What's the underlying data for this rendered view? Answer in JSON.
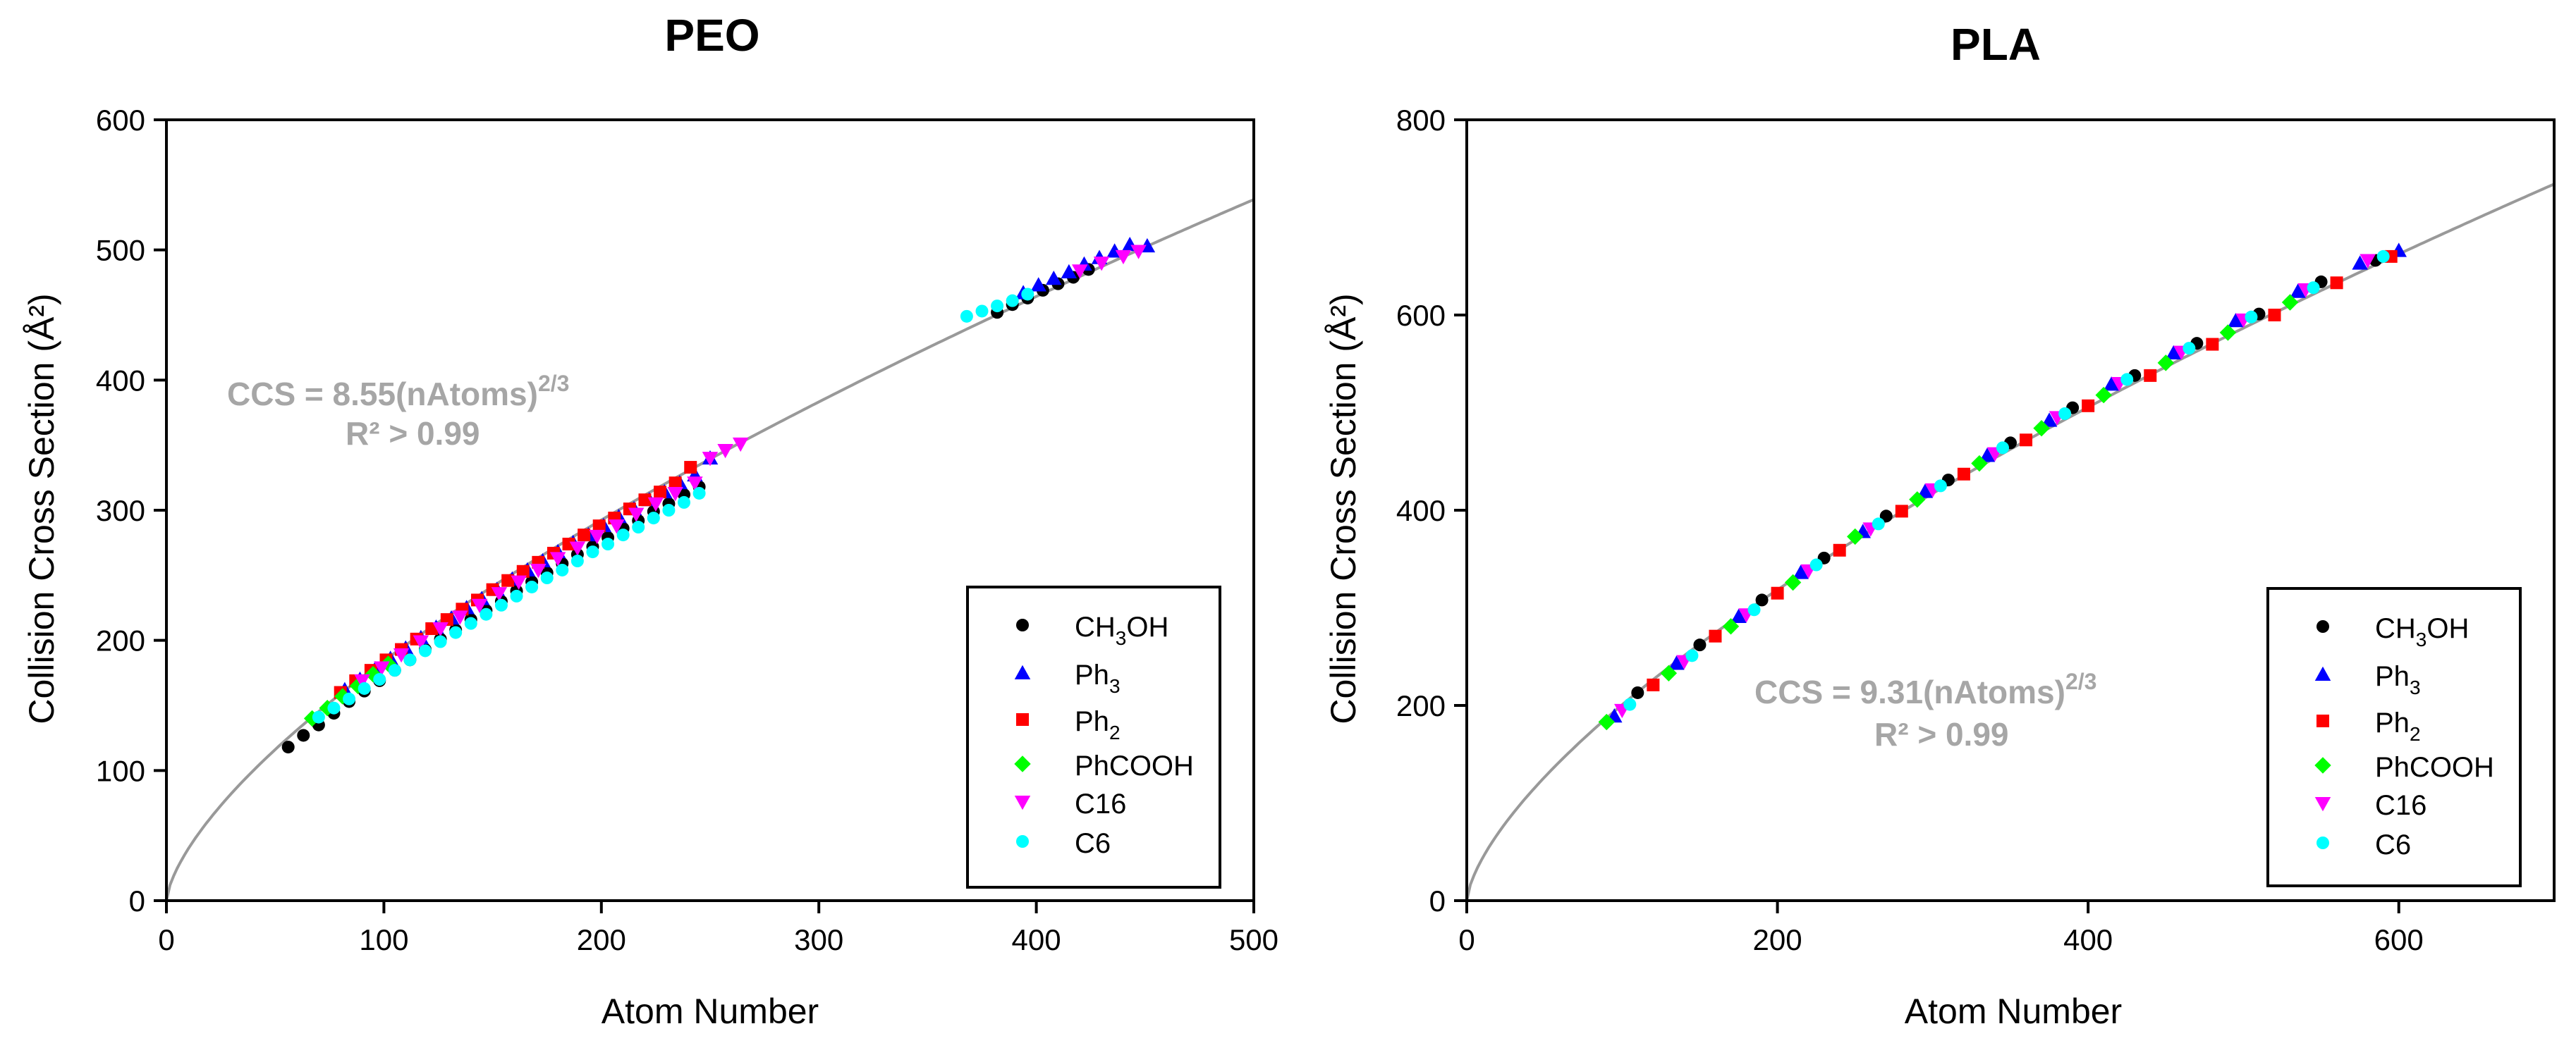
{
  "chart_data": [
    {
      "id": "peo",
      "type": "scatter",
      "title": "PEO",
      "xlabel": "Atom Number",
      "ylabel": "Collision Cross Section (Å²)",
      "xlim": [
        0,
        500
      ],
      "ylim": [
        0,
        600
      ],
      "xticks": [
        0,
        100,
        200,
        300,
        400,
        500
      ],
      "yticks": [
        0,
        100,
        200,
        300,
        400,
        500,
        600
      ],
      "xtick_labels": [
        "0",
        "100",
        "200",
        "300",
        "400",
        "500"
      ],
      "ytick_labels": [
        "0",
        "100",
        "200",
        "300",
        "400",
        "500",
        "600"
      ],
      "fit": {
        "coefficient": 8.55,
        "exponent": 0.6667,
        "color": "#999999",
        "x_range": [
          0,
          500
        ]
      },
      "annotation": {
        "line1_prefix": "CCS = 8.55(nAtoms)",
        "line1_sup": "2/3",
        "line2": "R² > 0.99"
      },
      "legend_position": "bottom-right",
      "series": [
        {
          "name": "CH3OH",
          "label_main": "CH",
          "label_sub": "3",
          "label_tail": "OH",
          "marker": "circle",
          "color": "#000000",
          "x": [
            56,
            63,
            70,
            77,
            84,
            91,
            98,
            105,
            112,
            119,
            126,
            133,
            140,
            147,
            154,
            161,
            168,
            175,
            182,
            189,
            196,
            203,
            210,
            217,
            224,
            231,
            238,
            245,
            382,
            389,
            396,
            403,
            410,
            417,
            424
          ],
          "y": [
            118,
            127,
            135,
            144,
            153,
            161,
            169,
            177,
            185,
            193,
            201,
            208,
            216,
            223,
            230,
            238,
            245,
            252,
            259,
            266,
            272,
            279,
            286,
            292,
            299,
            305,
            312,
            318,
            452,
            458,
            463,
            469,
            474,
            479,
            485
          ]
        },
        {
          "name": "Ph3",
          "label_main": "Ph",
          "label_sub": "3",
          "label_tail": "",
          "marker": "triangle-up",
          "color": "#0000ff",
          "x": [
            82,
            89,
            96,
            103,
            110,
            117,
            124,
            131,
            138,
            145,
            152,
            159,
            166,
            173,
            180,
            187,
            194,
            201,
            208,
            215,
            222,
            229,
            236,
            243,
            250,
            394,
            401,
            408,
            415,
            422,
            429,
            436,
            443,
            451
          ],
          "y": [
            162,
            170,
            178,
            186,
            194,
            202,
            210,
            217,
            225,
            232,
            239,
            247,
            254,
            261,
            268,
            275,
            281,
            288,
            295,
            301,
            308,
            314,
            321,
            327,
            340,
            467,
            473,
            478,
            483,
            489,
            494,
            499,
            504,
            503
          ]
        },
        {
          "name": "Ph2",
          "label_main": "Ph",
          "label_sub": "2",
          "label_tail": "",
          "marker": "square",
          "color": "#ff0000",
          "x": [
            80,
            87,
            94,
            101,
            108,
            115,
            122,
            129,
            136,
            143,
            150,
            157,
            164,
            171,
            178,
            185,
            192,
            199,
            206,
            213,
            220,
            227,
            234,
            241
          ],
          "y": [
            160,
            169,
            177,
            185,
            193,
            201,
            209,
            216,
            224,
            231,
            239,
            246,
            253,
            260,
            267,
            274,
            281,
            288,
            294,
            301,
            308,
            314,
            321,
            333
          ]
        },
        {
          "name": "PhCOOH",
          "label_main": "PhCOOH",
          "label_sub": "",
          "label_tail": "",
          "marker": "diamond",
          "color": "#00ff00",
          "x": [
            67,
            74,
            81,
            88,
            95,
            102
          ],
          "y": [
            140,
            148,
            157,
            165,
            174,
            182
          ]
        },
        {
          "name": "C16",
          "label_main": "C16",
          "label_sub": "",
          "label_tail": "",
          "marker": "triangle-down",
          "color": "#ff00ff",
          "x": [
            90,
            99,
            108,
            117,
            126,
            135,
            144,
            153,
            162,
            171,
            180,
            189,
            198,
            207,
            216,
            225,
            234,
            243,
            250,
            257,
            264,
            420,
            430,
            440,
            447
          ],
          "y": [
            169,
            179,
            189,
            199,
            209,
            218,
            227,
            236,
            245,
            254,
            263,
            271,
            280,
            288,
            297,
            305,
            313,
            321,
            340,
            346,
            351,
            484,
            490,
            495,
            499
          ]
        },
        {
          "name": "C6",
          "label_main": "C6",
          "label_sub": "",
          "label_tail": "",
          "marker": "circle",
          "color": "#00ffff",
          "x": [
            70,
            77,
            84,
            91,
            98,
            105,
            112,
            119,
            126,
            133,
            140,
            147,
            154,
            161,
            168,
            175,
            182,
            189,
            196,
            203,
            210,
            217,
            224,
            231,
            238,
            245,
            368,
            375,
            382,
            389,
            396
          ],
          "y": [
            141,
            148,
            155,
            163,
            170,
            177,
            185,
            192,
            199,
            206,
            213,
            220,
            227,
            234,
            241,
            248,
            254,
            261,
            268,
            274,
            281,
            287,
            294,
            300,
            306,
            313,
            449,
            453,
            457,
            461,
            466
          ]
        }
      ]
    },
    {
      "id": "pla",
      "type": "scatter",
      "title": "PLA",
      "xlabel": "Atom Number",
      "ylabel": "Collision Cross Section (Å²)",
      "xlim": [
        0,
        700
      ],
      "ylim": [
        0,
        800
      ],
      "xticks": [
        0,
        200,
        400,
        600
      ],
      "yticks": [
        0,
        200,
        400,
        600,
        800
      ],
      "xtick_labels": [
        "0",
        "200",
        "400",
        "600"
      ],
      "ytick_labels": [
        "0",
        "200",
        "400",
        "600",
        "800"
      ],
      "fit": {
        "coefficient": 9.31,
        "exponent": 0.6667,
        "color": "#999999",
        "x_range": [
          0,
          700
        ]
      },
      "annotation": {
        "line1_prefix": "CCS = 9.31(nAtoms)",
        "line1_sup": "2/3",
        "line2": "R² > 0.99"
      },
      "legend_position": "bottom-right",
      "series": [
        {
          "name": "CH3OH",
          "label_main": "CH",
          "label_sub": "3",
          "label_tail": "OH",
          "marker": "circle",
          "color": "#000000",
          "x": [
            110,
            150,
            190,
            230,
            270,
            310,
            350,
            390,
            430,
            470,
            510,
            550,
            585
          ],
          "y": [
            213,
            262,
            308,
            351,
            394,
            431,
            469,
            505,
            538,
            571,
            601,
            634,
            656
          ]
        },
        {
          "name": "Ph3",
          "label_main": "Ph",
          "label_sub": "3",
          "label_tail": "",
          "marker": "triangle-up",
          "color": "#0000ff",
          "x": [
            95,
            135,
            175,
            215,
            255,
            295,
            335,
            375,
            415,
            455,
            495,
            535,
            575,
            600
          ],
          "y": [
            189,
            243,
            291,
            336,
            378,
            419,
            456,
            492,
            529,
            561,
            594,
            624,
            653,
            666
          ]
        },
        {
          "name": "Ph2",
          "label_main": "Ph",
          "label_sub": "2",
          "label_tail": "",
          "marker": "square",
          "color": "#ff0000",
          "x": [
            120,
            160,
            200,
            240,
            280,
            320,
            360,
            400,
            440,
            480,
            520,
            560,
            595
          ],
          "y": [
            221,
            271,
            315,
            359,
            399,
            437,
            472,
            507,
            538,
            570,
            600,
            633,
            660
          ]
        },
        {
          "name": "PhCOOH",
          "label_main": "PhCOOH",
          "label_sub": "",
          "label_tail": "",
          "marker": "diamond",
          "color": "#00ff00",
          "x": [
            90,
            130,
            170,
            210,
            250,
            290,
            330,
            370,
            410,
            450,
            490,
            530
          ],
          "y": [
            183,
            233,
            281,
            326,
            373,
            411,
            448,
            484,
            518,
            551,
            582,
            613
          ]
        },
        {
          "name": "C16",
          "label_main": "C16",
          "label_sub": "",
          "label_tail": "",
          "marker": "triangle-down",
          "color": "#ff00ff",
          "x": [
            100,
            140,
            180,
            220,
            260,
            300,
            340,
            380,
            420,
            460,
            500,
            540,
            580
          ],
          "y": [
            195,
            245,
            293,
            338,
            381,
            421,
            458,
            495,
            530,
            562,
            595,
            626,
            656
          ]
        },
        {
          "name": "C6",
          "label_main": "C6",
          "label_sub": "",
          "label_tail": "",
          "marker": "circle",
          "color": "#00ffff",
          "x": [
            105,
            145,
            185,
            225,
            265,
            305,
            345,
            385,
            425,
            465,
            505,
            545,
            590
          ],
          "y": [
            201,
            251,
            298,
            344,
            386,
            425,
            464,
            499,
            534,
            566,
            598,
            628,
            660
          ]
        }
      ]
    }
  ]
}
